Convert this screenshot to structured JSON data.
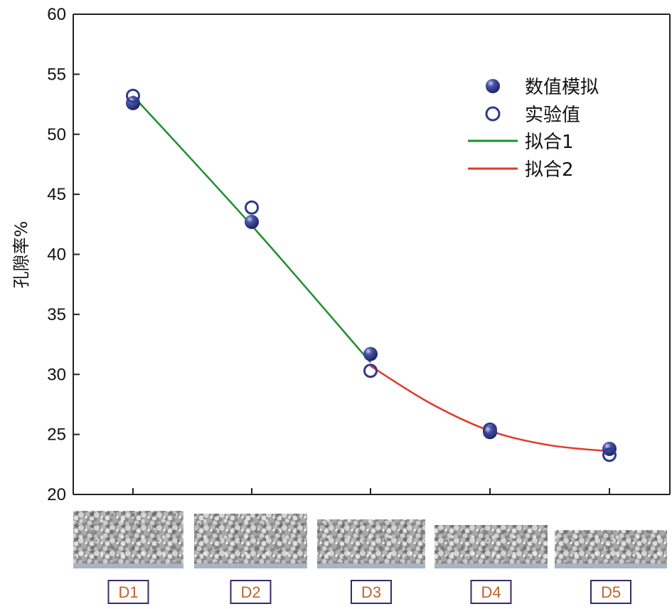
{
  "chart_data": {
    "type": "scatter",
    "ylabel": "孔隙率%",
    "ylim": [
      20,
      60
    ],
    "yticks": [
      20,
      25,
      30,
      35,
      40,
      45,
      50,
      55,
      60
    ],
    "categories": [
      "D1",
      "D2",
      "D3",
      "D4",
      "D5"
    ],
    "series": [
      {
        "name": "数值模拟",
        "marker": "filled-circle",
        "color": "#2e3a8c",
        "values": [
          52.6,
          42.7,
          31.7,
          25.2,
          23.8
        ]
      },
      {
        "name": "实验值",
        "marker": "open-circle",
        "color": "#2e3a8c",
        "values": [
          53.2,
          43.9,
          30.3,
          25.4,
          23.3
        ]
      }
    ],
    "fits": [
      {
        "name": "拟合1",
        "color": "#1f8f2f",
        "from": 0,
        "to": 2,
        "points": [
          [
            0,
            53.2
          ],
          [
            1,
            42.4
          ],
          [
            2,
            31.0
          ]
        ]
      },
      {
        "name": "拟合2",
        "color": "#e23a2a",
        "from": 2,
        "to": 4,
        "points": [
          [
            2,
            30.7
          ],
          [
            2.5,
            27.6
          ],
          [
            3,
            25.3
          ],
          [
            3.5,
            24.1
          ],
          [
            4,
            23.6
          ]
        ]
      }
    ],
    "sample_images": [
      "D1",
      "D2",
      "D3",
      "D4",
      "D5"
    ],
    "legend_position": "top-right",
    "grid": false
  }
}
